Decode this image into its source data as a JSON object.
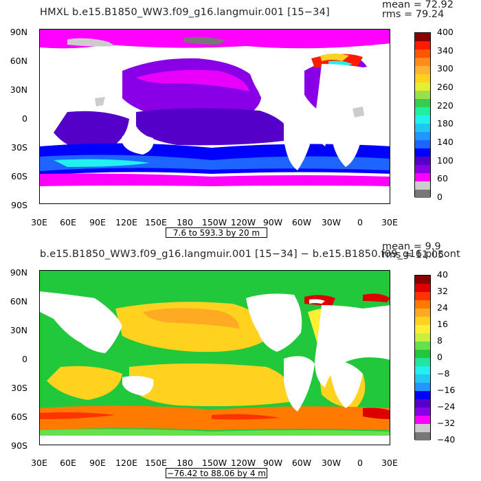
{
  "panels": [
    {
      "title": "HMXL  b.e15.B1850_WW3.f09_g16.langmuir.001  [15−34]",
      "mean": "mean = 72.92",
      "rms": "rms = 79.24",
      "range_label": "7.6 to 593.3 by 20 m",
      "lat_ticks": [
        "90N",
        "60N",
        "30N",
        "0",
        "30S",
        "60S",
        "90S"
      ],
      "lon_ticks": [
        "30E",
        "60E",
        "90E",
        "120E",
        "150E",
        "180",
        "150W",
        "120W",
        "90W",
        "60W",
        "30W",
        "0",
        "30E"
      ],
      "colorbar": {
        "labels": [
          "400",
          "340",
          "300",
          "260",
          "220",
          "180",
          "140",
          "100",
          "60",
          "0"
        ],
        "colors": [
          "#8b0000",
          "#ff1a00",
          "#ff5500",
          "#ff8c1a",
          "#ffb233",
          "#ffd21f",
          "#e6ee33",
          "#99e04d",
          "#33cc55",
          "#1ef0a0",
          "#22f0f0",
          "#1ec8f0",
          "#2296ff",
          "#1e64ff",
          "#0000ff",
          "#5500c8",
          "#8a00e6",
          "#ff00ff",
          "#cccccc",
          "#777777"
        ]
      }
    },
    {
      "title": "b.e15.B1850_WW3.f09_g16.langmuir.001  [15−34]  −  b.e15.B1850.f09_g16.pi.cont",
      "mean": "mean = 9.9",
      "rms": "rms = 11.05",
      "range_label": "−76.42 to 88.06 by 4 m",
      "lat_ticks": [
        "90N",
        "60N",
        "30N",
        "0",
        "30S",
        "60S",
        "90S"
      ],
      "lon_ticks": [
        "30E",
        "60E",
        "90E",
        "120E",
        "150E",
        "180",
        "150W",
        "120W",
        "90W",
        "60W",
        "30W",
        "0",
        "30E"
      ],
      "colorbar": {
        "labels": [
          "40",
          "32",
          "24",
          "16",
          "8",
          "0",
          "−8",
          "−16",
          "−24",
          "−32",
          "−40"
        ],
        "colors": [
          "#8b0000",
          "#dd0000",
          "#ff3300",
          "#ff7a00",
          "#ffaa22",
          "#ffd21f",
          "#ffee33",
          "#c8f03c",
          "#66e04d",
          "#22c83c",
          "#22e6a0",
          "#22f0f0",
          "#22c8f0",
          "#2296ff",
          "#0000ff",
          "#5500c8",
          "#8a00e6",
          "#ff00ff",
          "#cccccc",
          "#777777"
        ]
      }
    }
  ],
  "chart_data": [
    {
      "type": "heatmap",
      "title": "HMXL  b.e15.B1850_WW3.f09_g16.langmuir.001  [15−34]",
      "field": "HMXL",
      "units": "m",
      "mean": 72.92,
      "rms": 79.24,
      "min": 7.6,
      "max": 593.3,
      "contour_interval": 20,
      "x_ticks": [
        "30E",
        "60E",
        "90E",
        "120E",
        "150E",
        "180",
        "150W",
        "120W",
        "90W",
        "60W",
        "30W",
        "0",
        "30E"
      ],
      "y_ticks": [
        "90N",
        "60N",
        "30N",
        "0",
        "30S",
        "60S",
        "90S"
      ],
      "colorbar_labels": [
        400,
        340,
        300,
        260,
        220,
        180,
        140,
        100,
        60,
        0
      ]
    },
    {
      "type": "heatmap",
      "title": "b.e15.B1850_WW3.f09_g16.langmuir.001  [15−34]  −  b.e15.B1850.f09_g16.pi.cont",
      "units": "m",
      "mean": 9.9,
      "rms": 11.05,
      "min": -76.42,
      "max": 88.06,
      "contour_interval": 4,
      "x_ticks": [
        "30E",
        "60E",
        "90E",
        "120E",
        "150E",
        "180",
        "150W",
        "120W",
        "90W",
        "60W",
        "30W",
        "0",
        "30E"
      ],
      "y_ticks": [
        "90N",
        "60N",
        "30N",
        "0",
        "30S",
        "60S",
        "90S"
      ],
      "colorbar_labels": [
        40,
        32,
        24,
        16,
        8,
        0,
        -8,
        -16,
        -24,
        -32,
        -40
      ]
    }
  ]
}
